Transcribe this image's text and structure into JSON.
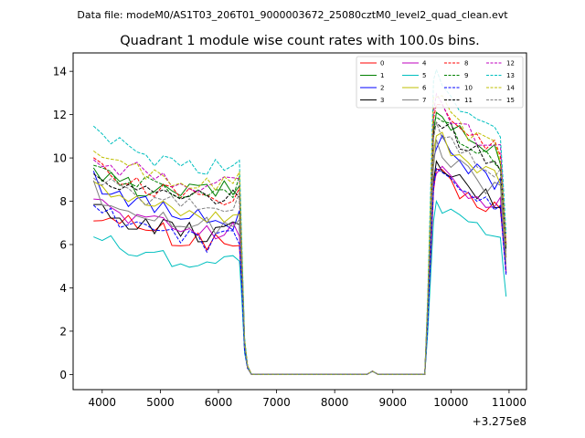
{
  "figure": {
    "suptitle": "Data file: modeM0/AS1T03_206T01_9000003672_25080cztM0_level2_quad_clean.evt"
  },
  "chart_data": {
    "type": "line",
    "title": "Quadrant 1 module wise count rates with 100.0s bins.",
    "xlabel": "",
    "ylabel": "",
    "x_offset_label": "+3.275e8",
    "xlim": [
      3500,
      11300
    ],
    "ylim": [
      -0.7,
      14.85
    ],
    "xticks": [
      4000,
      5000,
      6000,
      7000,
      8000,
      9000,
      10000,
      11000
    ],
    "yticks": [
      0,
      2,
      4,
      6,
      8,
      10,
      12,
      14
    ],
    "grid": false,
    "legend_position": "top-right",
    "x_anchors": [
      3850,
      4000,
      4150,
      4300,
      4450,
      4600,
      4750,
      4900,
      5050,
      5200,
      5350,
      5500,
      5650,
      5800,
      5950,
      6100,
      6250,
      6360,
      6400,
      6450,
      6500,
      6570,
      7000,
      8000,
      8550,
      8650,
      8750,
      9000,
      9550,
      9600,
      9650,
      9700,
      9750,
      9850,
      10000,
      10150,
      10300,
      10450,
      10600,
      10750,
      10850,
      10900,
      10950
    ],
    "series": [
      {
        "name": "0",
        "color": "#ff0000",
        "style": "solid",
        "values": [
          7.5,
          7.1,
          7.0,
          6.8,
          7.0,
          6.7,
          6.9,
          6.5,
          6.6,
          6.3,
          6.2,
          6.2,
          6.3,
          6.2,
          6.1,
          6.0,
          6.0,
          6.1,
          4.1,
          1.1,
          0.3,
          0.0,
          0.0,
          0.0,
          0.0,
          0.15,
          0.0,
          0.0,
          0.0,
          2.1,
          5.2,
          8.5,
          9.1,
          9.1,
          8.6,
          8.3,
          8.1,
          8.0,
          7.9,
          7.8,
          7.7,
          6.2,
          4.8
        ]
      },
      {
        "name": "1",
        "color": "#008000",
        "style": "solid",
        "values": [
          9.2,
          9.1,
          8.9,
          8.8,
          8.7,
          8.6,
          8.6,
          8.5,
          8.4,
          8.3,
          8.5,
          8.5,
          8.4,
          8.6,
          8.5,
          8.5,
          8.5,
          8.7,
          5.6,
          1.5,
          0.4,
          0.0,
          0.0,
          0.0,
          0.0,
          0.15,
          0.0,
          0.0,
          0.0,
          3.1,
          7.2,
          11.2,
          12.1,
          12.0,
          11.6,
          11.2,
          10.9,
          10.6,
          10.4,
          10.3,
          10.1,
          8.0,
          6.0
        ]
      },
      {
        "name": "2",
        "color": "#0000ff",
        "style": "solid",
        "values": [
          9.2,
          8.7,
          8.6,
          8.4,
          8.2,
          8.0,
          7.8,
          7.7,
          7.6,
          7.5,
          7.4,
          7.3,
          7.2,
          7.1,
          7.1,
          7.0,
          7.0,
          7.4,
          4.8,
          1.3,
          0.3,
          0.0,
          0.0,
          0.0,
          0.0,
          0.15,
          0.0,
          0.0,
          0.0,
          2.7,
          6.3,
          10.0,
          10.8,
          10.7,
          10.4,
          10.0,
          9.7,
          9.4,
          9.2,
          9.0,
          8.9,
          7.0,
          5.4
        ]
      },
      {
        "name": "3",
        "color": "#000000",
        "style": "solid",
        "values": [
          7.8,
          7.5,
          7.3,
          7.2,
          7.1,
          7.0,
          6.9,
          6.9,
          6.8,
          6.7,
          6.6,
          6.6,
          6.5,
          6.5,
          6.5,
          6.5,
          6.6,
          6.6,
          4.3,
          1.2,
          0.3,
          0.0,
          0.0,
          0.0,
          0.0,
          0.15,
          0.0,
          0.0,
          0.0,
          2.3,
          5.6,
          8.9,
          9.7,
          9.5,
          9.1,
          8.9,
          8.6,
          8.4,
          8.2,
          8.0,
          7.9,
          6.3,
          4.7
        ]
      },
      {
        "name": "4",
        "color": "#bf00bf",
        "style": "solid",
        "values": [
          8.2,
          7.9,
          7.6,
          7.5,
          7.3,
          7.2,
          7.1,
          7.0,
          6.9,
          6.8,
          6.8,
          6.7,
          6.7,
          6.6,
          6.6,
          6.6,
          6.7,
          6.8,
          4.4,
          1.2,
          0.3,
          0.0,
          0.0,
          0.0,
          0.0,
          0.15,
          0.0,
          0.0,
          0.0,
          2.4,
          5.7,
          8.8,
          9.5,
          9.3,
          9.0,
          8.7,
          8.4,
          8.2,
          8.0,
          7.9,
          7.8,
          6.2,
          4.7
        ]
      },
      {
        "name": "5",
        "color": "#00bfbf",
        "style": "solid",
        "values": [
          6.6,
          6.2,
          6.1,
          5.9,
          5.8,
          5.7,
          5.6,
          5.5,
          5.4,
          5.4,
          5.3,
          5.3,
          5.2,
          5.2,
          5.2,
          5.2,
          5.3,
          5.5,
          3.6,
          1.0,
          0.3,
          0.0,
          0.0,
          0.0,
          0.0,
          0.15,
          0.0,
          0.0,
          0.0,
          1.9,
          4.5,
          7.1,
          7.7,
          7.6,
          7.3,
          7.0,
          6.8,
          6.7,
          6.5,
          6.4,
          6.3,
          4.9,
          3.6
        ]
      },
      {
        "name": "6",
        "color": "#bfbf00",
        "style": "solid",
        "values": [
          9.3,
          8.9,
          8.6,
          8.4,
          8.2,
          8.0,
          7.9,
          7.8,
          7.7,
          7.6,
          7.5,
          7.4,
          7.4,
          7.3,
          7.3,
          7.3,
          7.3,
          7.5,
          4.9,
          1.3,
          0.3,
          0.0,
          0.0,
          0.0,
          0.0,
          0.15,
          0.0,
          0.0,
          0.0,
          2.8,
          6.5,
          10.3,
          11.1,
          10.9,
          10.5,
          10.2,
          9.9,
          9.6,
          9.4,
          9.3,
          9.1,
          7.2,
          5.4
        ]
      },
      {
        "name": "7",
        "color": "#808080",
        "style": "solid",
        "values": [
          8.6,
          8.2,
          8.0,
          7.8,
          7.7,
          7.5,
          7.4,
          7.3,
          7.2,
          7.1,
          7.0,
          7.0,
          6.9,
          6.9,
          6.9,
          6.9,
          6.9,
          7.1,
          4.6,
          1.3,
          0.3,
          0.0,
          0.0,
          0.0,
          0.0,
          0.15,
          0.0,
          0.0,
          0.0,
          2.6,
          6.1,
          9.6,
          10.4,
          10.2,
          9.8,
          9.5,
          9.2,
          9.0,
          8.8,
          8.6,
          8.5,
          6.7,
          5.1
        ]
      },
      {
        "name": "8",
        "color": "#ff0000",
        "style": "dashed",
        "values": [
          9.8,
          9.4,
          9.2,
          9.0,
          8.9,
          8.8,
          8.7,
          8.6,
          8.5,
          8.4,
          8.3,
          8.3,
          8.2,
          8.2,
          8.2,
          8.2,
          8.2,
          8.4,
          5.5,
          1.5,
          0.4,
          0.0,
          0.0,
          0.0,
          0.0,
          0.15,
          0.0,
          0.0,
          0.0,
          3.2,
          7.5,
          11.8,
          12.4,
          12.2,
          11.8,
          11.4,
          11.0,
          10.8,
          10.6,
          10.4,
          10.2,
          8.1,
          6.0
        ]
      },
      {
        "name": "9",
        "color": "#008000",
        "style": "dashed",
        "values": [
          9.6,
          9.4,
          9.2,
          9.0,
          8.9,
          8.8,
          8.7,
          8.6,
          8.5,
          8.4,
          8.3,
          8.3,
          8.3,
          8.4,
          8.4,
          8.5,
          8.5,
          8.8,
          5.7,
          1.5,
          0.4,
          0.0,
          0.0,
          0.0,
          0.0,
          0.15,
          0.0,
          0.0,
          0.0,
          3.1,
          7.3,
          11.6,
          12.2,
          11.9,
          11.5,
          11.1,
          10.8,
          10.5,
          10.3,
          10.1,
          9.9,
          7.9,
          5.9
        ]
      },
      {
        "name": "10",
        "color": "#0000ff",
        "style": "dashed",
        "values": [
          7.9,
          7.5,
          7.3,
          7.1,
          6.9,
          6.7,
          6.6,
          6.5,
          6.4,
          6.3,
          6.2,
          6.2,
          6.1,
          6.1,
          6.1,
          6.2,
          6.2,
          6.4,
          4.2,
          1.1,
          0.3,
          0.0,
          0.0,
          0.0,
          0.0,
          0.15,
          0.0,
          0.0,
          0.0,
          2.3,
          5.6,
          8.6,
          9.3,
          9.1,
          8.8,
          8.5,
          8.2,
          8.0,
          7.9,
          7.8,
          7.7,
          6.1,
          4.6
        ]
      },
      {
        "name": "11",
        "color": "#000000",
        "style": "dashed",
        "values": [
          9.5,
          9.2,
          9.0,
          8.9,
          8.7,
          8.6,
          8.5,
          8.4,
          8.3,
          8.3,
          8.2,
          8.2,
          8.1,
          8.1,
          8.1,
          8.1,
          8.2,
          8.4,
          5.5,
          1.5,
          0.4,
          0.0,
          0.0,
          0.0,
          0.0,
          0.15,
          0.0,
          0.0,
          0.0,
          3.1,
          7.2,
          11.1,
          11.8,
          11.6,
          11.2,
          10.8,
          10.5,
          10.3,
          10.1,
          9.9,
          9.7,
          7.7,
          5.7
        ]
      },
      {
        "name": "12",
        "color": "#bf00bf",
        "style": "dashed",
        "values": [
          10.3,
          10.0,
          9.8,
          9.6,
          9.5,
          9.4,
          9.3,
          9.2,
          9.1,
          9.0,
          8.9,
          8.9,
          8.8,
          8.8,
          8.8,
          8.8,
          8.9,
          9.1,
          5.9,
          1.6,
          0.4,
          0.0,
          0.0,
          0.0,
          0.0,
          0.15,
          0.0,
          0.0,
          0.0,
          3.3,
          7.8,
          12.1,
          12.6,
          12.3,
          11.9,
          11.5,
          11.2,
          10.9,
          10.7,
          10.5,
          10.3,
          8.2,
          6.1
        ]
      },
      {
        "name": "13",
        "color": "#00bfbf",
        "style": "dashed",
        "values": [
          11.1,
          10.8,
          10.6,
          10.5,
          10.4,
          10.3,
          10.2,
          10.0,
          9.9,
          9.8,
          9.7,
          9.7,
          9.6,
          9.6,
          9.6,
          9.6,
          9.6,
          9.8,
          6.3,
          1.7,
          0.4,
          0.0,
          0.0,
          0.0,
          0.0,
          0.15,
          0.0,
          0.0,
          0.0,
          3.6,
          8.5,
          13.6,
          14.1,
          13.6,
          13.0,
          12.5,
          12.1,
          11.8,
          11.5,
          11.2,
          11.0,
          8.8,
          6.5
        ]
      },
      {
        "name": "14",
        "color": "#bfbf00",
        "style": "dashed",
        "values": [
          10.1,
          9.9,
          9.7,
          9.5,
          9.4,
          9.3,
          9.2,
          9.1,
          9.0,
          8.9,
          8.9,
          8.8,
          8.8,
          8.8,
          8.8,
          8.9,
          8.9,
          9.1,
          5.9,
          1.6,
          0.4,
          0.0,
          0.0,
          0.0,
          0.0,
          0.15,
          0.0,
          0.0,
          0.0,
          3.4,
          8.0,
          12.8,
          13.2,
          12.7,
          12.1,
          11.6,
          11.2,
          10.9,
          10.6,
          10.4,
          10.2,
          8.1,
          6.0
        ]
      },
      {
        "name": "15",
        "color": "#808080",
        "style": "dashed",
        "values": [
          9.0,
          8.8,
          8.6,
          8.4,
          8.3,
          8.2,
          8.1,
          8.0,
          7.9,
          7.9,
          7.8,
          7.8,
          7.7,
          7.7,
          7.7,
          7.8,
          7.8,
          8.0,
          5.2,
          1.4,
          0.3,
          0.0,
          0.0,
          0.0,
          0.0,
          0.15,
          0.0,
          0.0,
          0.0,
          2.9,
          6.9,
          10.9,
          11.5,
          11.2,
          10.8,
          10.5,
          10.2,
          9.9,
          9.7,
          9.5,
          9.3,
          7.4,
          5.5
        ]
      }
    ]
  }
}
